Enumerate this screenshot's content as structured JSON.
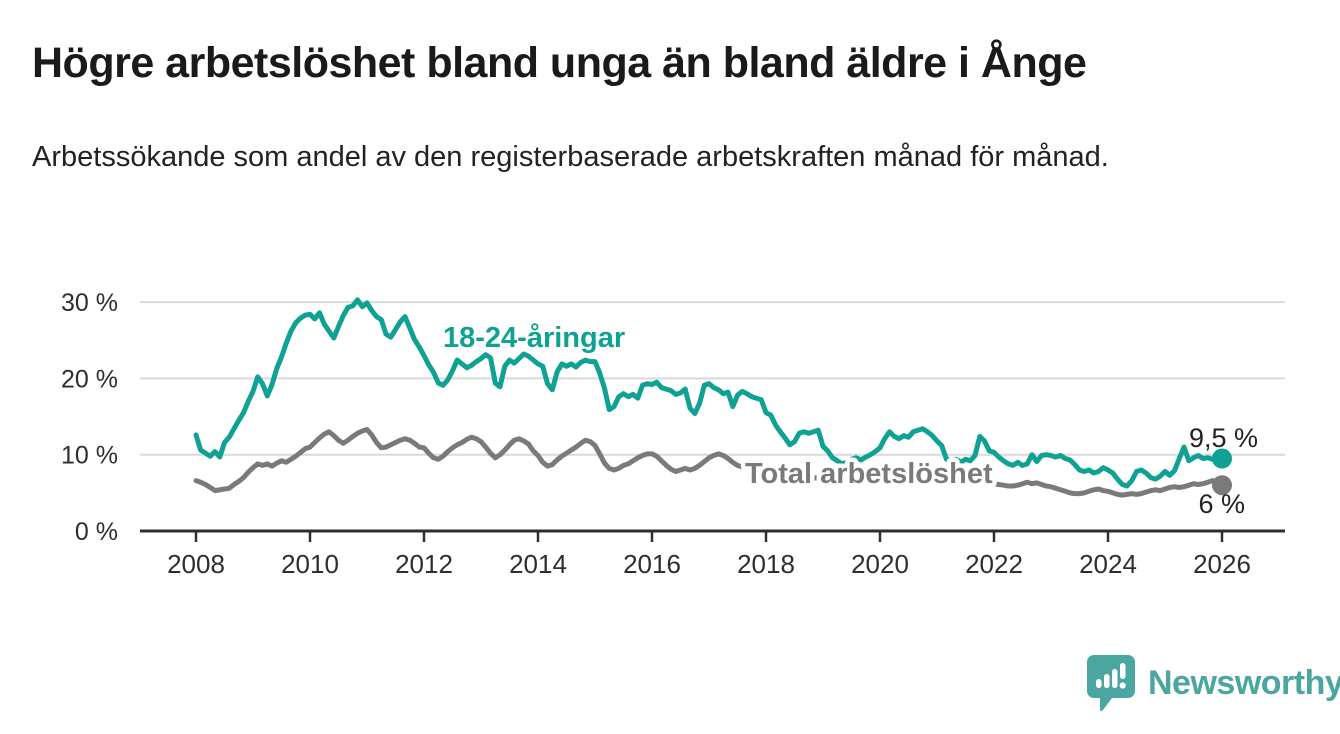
{
  "header": {
    "title": "Högre arbetslöshet bland unga än bland äldre i Ånge",
    "subtitle": "Arbetssökande som andel av den registerbaserade arbetskraften månad för månad."
  },
  "branding": {
    "name": "Newsworthy",
    "logo_icon": "speech-bubble-bar-chart-icon",
    "color": "#4ba6a1"
  },
  "colors": {
    "youth_line": "#0fa294",
    "total_line": "#7a7a7a",
    "axis_text": "#2e2e2e",
    "gridline": "#d9d9d9",
    "end_label_text": "#222222",
    "background": "#ffffff"
  },
  "chart_data": {
    "type": "line",
    "title": "Högre arbetslöshet bland unga än bland äldre i Ånge",
    "subtitle": "Arbetssökande som andel av den registerbaserade arbetskraften månad för månad.",
    "unit": "%",
    "grid": "horizontal",
    "legend_position": "inline-labels",
    "x_start_year": 2008,
    "x_step_months": 1,
    "x_axis": {
      "min": 2007.0,
      "max": 2027.1,
      "ticks": [
        2008,
        2010,
        2012,
        2014,
        2016,
        2018,
        2020,
        2022,
        2024,
        2026
      ]
    },
    "y_axis": {
      "min": 0,
      "max": 32,
      "ticks": [
        0,
        10,
        20,
        30
      ],
      "tick_suffix": " %"
    },
    "series": [
      {
        "name": "Total arbetslöshet",
        "color": "#7a7a7a",
        "end_label": "6 %",
        "end_value": 6.0,
        "values": [
          6.6,
          6.4,
          6.1,
          5.7,
          5.3,
          5.4,
          5.5,
          5.6,
          6.1,
          6.5,
          7.0,
          7.7,
          8.3,
          8.8,
          8.6,
          8.8,
          8.5,
          8.9,
          9.2,
          9.0,
          9.4,
          9.8,
          10.3,
          10.8,
          11.0,
          11.6,
          12.2,
          12.7,
          13.0,
          12.5,
          11.9,
          11.5,
          11.9,
          12.4,
          12.8,
          13.1,
          13.3,
          12.6,
          11.6,
          10.9,
          11.0,
          11.3,
          11.6,
          11.9,
          12.1,
          11.9,
          11.5,
          11.0,
          10.9,
          10.2,
          9.6,
          9.4,
          9.8,
          10.4,
          10.9,
          11.3,
          11.6,
          12.0,
          12.3,
          12.1,
          11.7,
          11.0,
          10.2,
          9.6,
          10.0,
          10.6,
          11.3,
          11.9,
          12.1,
          11.8,
          11.4,
          10.5,
          9.9,
          9.0,
          8.5,
          8.7,
          9.3,
          9.8,
          10.2,
          10.6,
          11.0,
          11.5,
          11.9,
          11.7,
          11.2,
          10.1,
          8.9,
          8.2,
          8.0,
          8.2,
          8.6,
          8.8,
          9.2,
          9.6,
          9.9,
          10.1,
          10.1,
          9.8,
          9.2,
          8.6,
          8.1,
          7.8,
          8.0,
          8.2,
          8.0,
          8.2,
          8.6,
          9.1,
          9.6,
          9.9,
          10.1,
          9.9,
          9.5,
          9.0,
          8.6,
          8.4,
          8.5,
          8.3,
          8.2,
          8.1,
          8.0,
          7.8,
          7.7,
          7.5,
          7.4,
          7.3,
          7.2,
          7.1,
          7.1,
          7.0,
          7.0,
          6.9,
          6.9,
          6.8,
          6.7,
          6.6,
          6.6,
          6.5,
          6.5,
          6.6,
          6.6,
          6.7,
          6.8,
          6.9,
          7.1,
          7.3,
          7.6,
          7.9,
          8.1,
          8.2,
          8.2,
          8.1,
          8.0,
          7.9,
          7.8,
          7.7,
          7.6,
          7.5,
          7.3,
          7.2,
          7.0,
          6.9,
          6.8,
          6.7,
          6.6,
          6.5,
          6.4,
          6.3,
          6.2,
          6.1,
          6.0,
          5.9,
          5.9,
          6.0,
          6.2,
          6.4,
          6.2,
          6.3,
          6.1,
          5.9,
          5.8,
          5.6,
          5.4,
          5.2,
          5.0,
          4.9,
          4.9,
          5.0,
          5.2,
          5.4,
          5.5,
          5.3,
          5.2,
          5.0,
          4.8,
          4.7,
          4.8,
          4.9,
          4.8,
          4.9,
          5.1,
          5.3,
          5.4,
          5.3,
          5.5,
          5.7,
          5.8,
          5.7,
          5.8,
          6.0,
          6.2,
          6.1,
          6.2,
          6.4,
          6.6,
          6.4,
          6.0
        ]
      },
      {
        "name": "18-24-åringar",
        "color": "#0fa294",
        "end_label": "9,5 %",
        "end_value": 9.5,
        "values": [
          12.6,
          10.6,
          10.2,
          9.8,
          10.4,
          9.7,
          11.6,
          12.3,
          13.4,
          14.5,
          15.5,
          17.0,
          18.3,
          20.2,
          19.3,
          17.7,
          19.2,
          21.3,
          22.8,
          24.6,
          26.2,
          27.3,
          27.9,
          28.3,
          28.4,
          27.8,
          28.6,
          27.1,
          26.2,
          25.3,
          26.8,
          28.2,
          29.3,
          29.5,
          30.3,
          29.4,
          29.9,
          28.9,
          28.1,
          27.7,
          25.8,
          25.4,
          26.4,
          27.4,
          28.1,
          26.6,
          25.1,
          24.1,
          23.0,
          21.8,
          20.8,
          19.4,
          19.1,
          19.8,
          21.0,
          22.4,
          21.9,
          21.4,
          21.7,
          22.2,
          22.6,
          23.1,
          22.7,
          19.4,
          18.9,
          21.6,
          22.4,
          22.0,
          22.6,
          23.2,
          22.9,
          22.4,
          21.9,
          21.6,
          19.3,
          18.5,
          20.8,
          21.9,
          21.6,
          21.9,
          21.5,
          22.1,
          22.4,
          22.2,
          22.2,
          20.7,
          18.7,
          15.9,
          16.3,
          17.6,
          18.0,
          17.6,
          17.9,
          17.4,
          19.1,
          19.3,
          19.2,
          19.5,
          18.8,
          18.6,
          18.4,
          17.9,
          18.1,
          18.6,
          16.1,
          15.4,
          16.7,
          19.1,
          19.3,
          18.8,
          18.5,
          18.0,
          18.2,
          16.3,
          17.8,
          18.3,
          18.0,
          17.6,
          17.4,
          17.2,
          15.5,
          15.2,
          13.9,
          13.0,
          12.2,
          11.3,
          11.7,
          12.8,
          13.0,
          12.8,
          13.0,
          13.2,
          11.1,
          10.5,
          9.6,
          9.2,
          8.8,
          9.0,
          9.4,
          9.6,
          9.3,
          9.7,
          10.0,
          10.4,
          10.9,
          12.1,
          13.0,
          12.4,
          12.1,
          12.5,
          12.3,
          13.0,
          13.2,
          13.4,
          13.0,
          12.5,
          11.8,
          11.2,
          9.4,
          9.2,
          9.4,
          9.0,
          9.4,
          9.2,
          9.9,
          12.4,
          11.8,
          10.5,
          10.3,
          9.7,
          9.2,
          8.8,
          8.6,
          9.0,
          8.6,
          8.8,
          10.0,
          9.1,
          9.9,
          10.0,
          9.9,
          9.7,
          9.9,
          9.5,
          9.3,
          8.7,
          8.0,
          7.8,
          8.0,
          7.6,
          7.8,
          8.3,
          8.0,
          7.6,
          6.8,
          6.1,
          5.9,
          6.6,
          7.8,
          8.0,
          7.6,
          7.0,
          6.8,
          7.2,
          7.8,
          7.3,
          7.9,
          9.5,
          11.0,
          9.2,
          9.6,
          9.9,
          9.5,
          9.6,
          9.4,
          9.5,
          9.5
        ]
      }
    ]
  }
}
